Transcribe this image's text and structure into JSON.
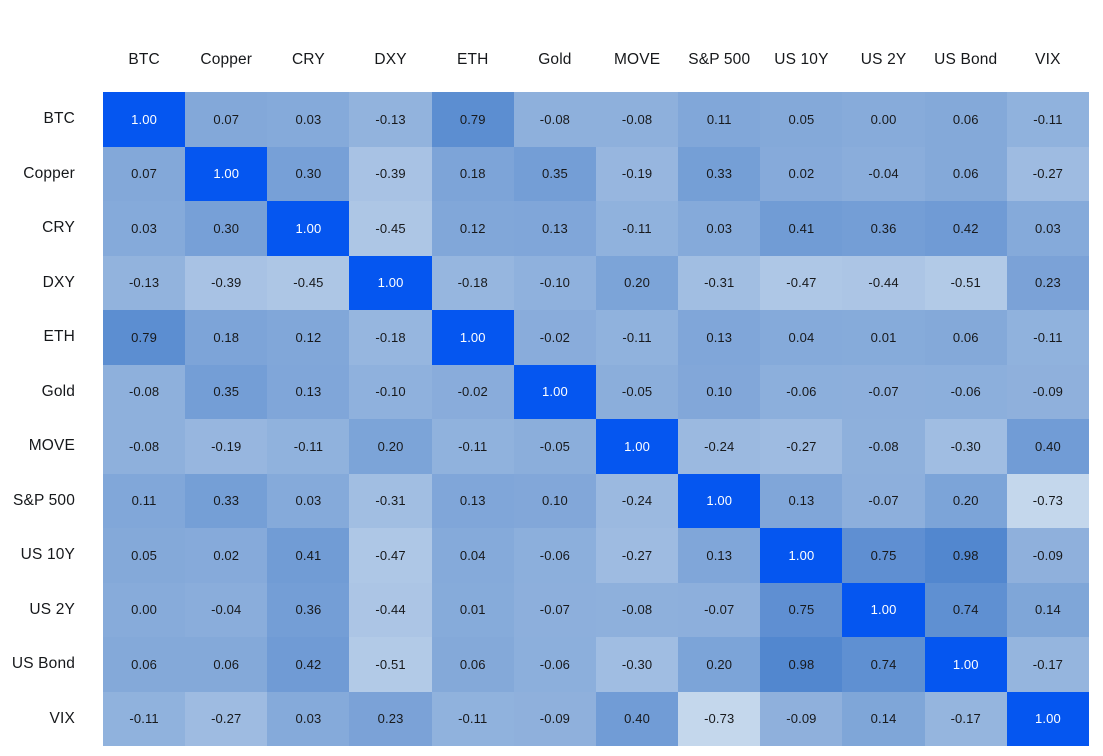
{
  "page": {
    "background_color": "#ffffff",
    "label_text_color": "#16181b",
    "cell_text_color": "#17191c",
    "diagonal_text_color": "#ffffff"
  },
  "chart_data": {
    "type": "heatmap",
    "subtype": "correlation-matrix",
    "title": "",
    "xlabel": "",
    "ylabel": "",
    "legend": "none",
    "value_format": "two-decimal",
    "value_range": [
      -1,
      1
    ],
    "columns": [
      "BTC",
      "Copper",
      "CRY",
      "DXY",
      "ETH",
      "Gold",
      "MOVE",
      "S&P 500",
      "US 10Y",
      "US 2Y",
      "US Bond",
      "VIX"
    ],
    "rows": [
      "BTC",
      "Copper",
      "CRY",
      "DXY",
      "ETH",
      "Gold",
      "MOVE",
      "S&P 500",
      "US 10Y",
      "US 2Y",
      "US Bond",
      "VIX"
    ],
    "matrix": [
      [
        1.0,
        0.07,
        0.03,
        -0.13,
        0.79,
        -0.08,
        -0.08,
        0.11,
        0.05,
        0.0,
        0.06,
        -0.11
      ],
      [
        0.07,
        1.0,
        0.3,
        -0.39,
        0.18,
        0.35,
        -0.19,
        0.33,
        0.02,
        -0.04,
        0.06,
        -0.27
      ],
      [
        0.03,
        0.3,
        1.0,
        -0.45,
        0.12,
        0.13,
        -0.11,
        0.03,
        0.41,
        0.36,
        0.42,
        0.03
      ],
      [
        -0.13,
        -0.39,
        -0.45,
        1.0,
        -0.18,
        -0.1,
        0.2,
        -0.31,
        -0.47,
        -0.44,
        -0.51,
        0.23
      ],
      [
        0.79,
        0.18,
        0.12,
        -0.18,
        1.0,
        -0.02,
        -0.11,
        0.13,
        0.04,
        0.01,
        0.06,
        -0.11
      ],
      [
        -0.08,
        0.35,
        0.13,
        -0.1,
        -0.02,
        1.0,
        -0.05,
        0.1,
        -0.06,
        -0.07,
        -0.06,
        -0.09
      ],
      [
        -0.08,
        -0.19,
        -0.11,
        0.2,
        -0.11,
        -0.05,
        1.0,
        -0.24,
        -0.27,
        -0.08,
        -0.3,
        0.4
      ],
      [
        0.11,
        0.33,
        0.03,
        -0.31,
        0.13,
        0.1,
        -0.24,
        1.0,
        0.13,
        -0.07,
        0.2,
        -0.73
      ],
      [
        0.05,
        0.02,
        0.41,
        -0.47,
        0.04,
        -0.06,
        -0.27,
        0.13,
        1.0,
        0.75,
        0.98,
        -0.09
      ],
      [
        0.0,
        -0.04,
        0.36,
        -0.44,
        0.01,
        -0.07,
        -0.08,
        -0.07,
        0.75,
        1.0,
        0.74,
        0.14
      ],
      [
        0.06,
        0.06,
        0.42,
        -0.51,
        0.06,
        -0.06,
        -0.3,
        0.2,
        0.98,
        0.74,
        1.0,
        -0.17
      ],
      [
        -0.11,
        -0.27,
        0.03,
        0.23,
        -0.11,
        -0.09,
        0.4,
        -0.73,
        -0.09,
        0.14,
        -0.17,
        1.0
      ]
    ],
    "colormap": {
      "stops": [
        {
          "value": -1,
          "color": "#dbe7f3"
        },
        {
          "value": 0,
          "color": "#87abda"
        },
        {
          "value": 1,
          "color": "#5186cf"
        }
      ],
      "diagonal_color": "#0556f0"
    }
  }
}
